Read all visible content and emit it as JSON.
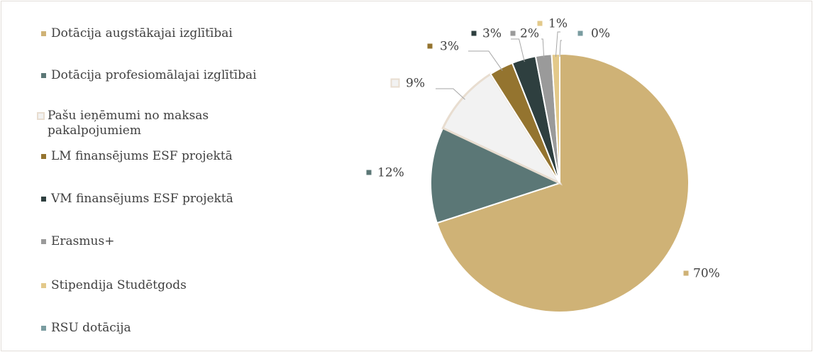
{
  "chart_data": {
    "type": "pie",
    "categories": [
      "Dotācija augstākajai izglītībai",
      "Dotācija profesiomālajai izglītībai",
      "Pašu ieņēmumi no maksas pakalpojumiem",
      "LM finansējums ESF projektā",
      "VM finansējums ESF projektā",
      "Erasmus+",
      "Stipendija Studētgods",
      "RSU dotācija"
    ],
    "values": [
      70,
      12,
      9,
      3,
      3,
      2,
      1,
      0
    ],
    "value_labels": [
      "70%",
      "12%",
      "9%",
      "3%",
      "3%",
      "2%",
      "1%",
      "0%"
    ],
    "colors": [
      "#cfb276",
      "#5b7776",
      "#f2f2f2",
      "#94742f",
      "#2e3f3f",
      "#9a9a9a",
      "#e3c98a",
      "#7a9ca0"
    ]
  }
}
